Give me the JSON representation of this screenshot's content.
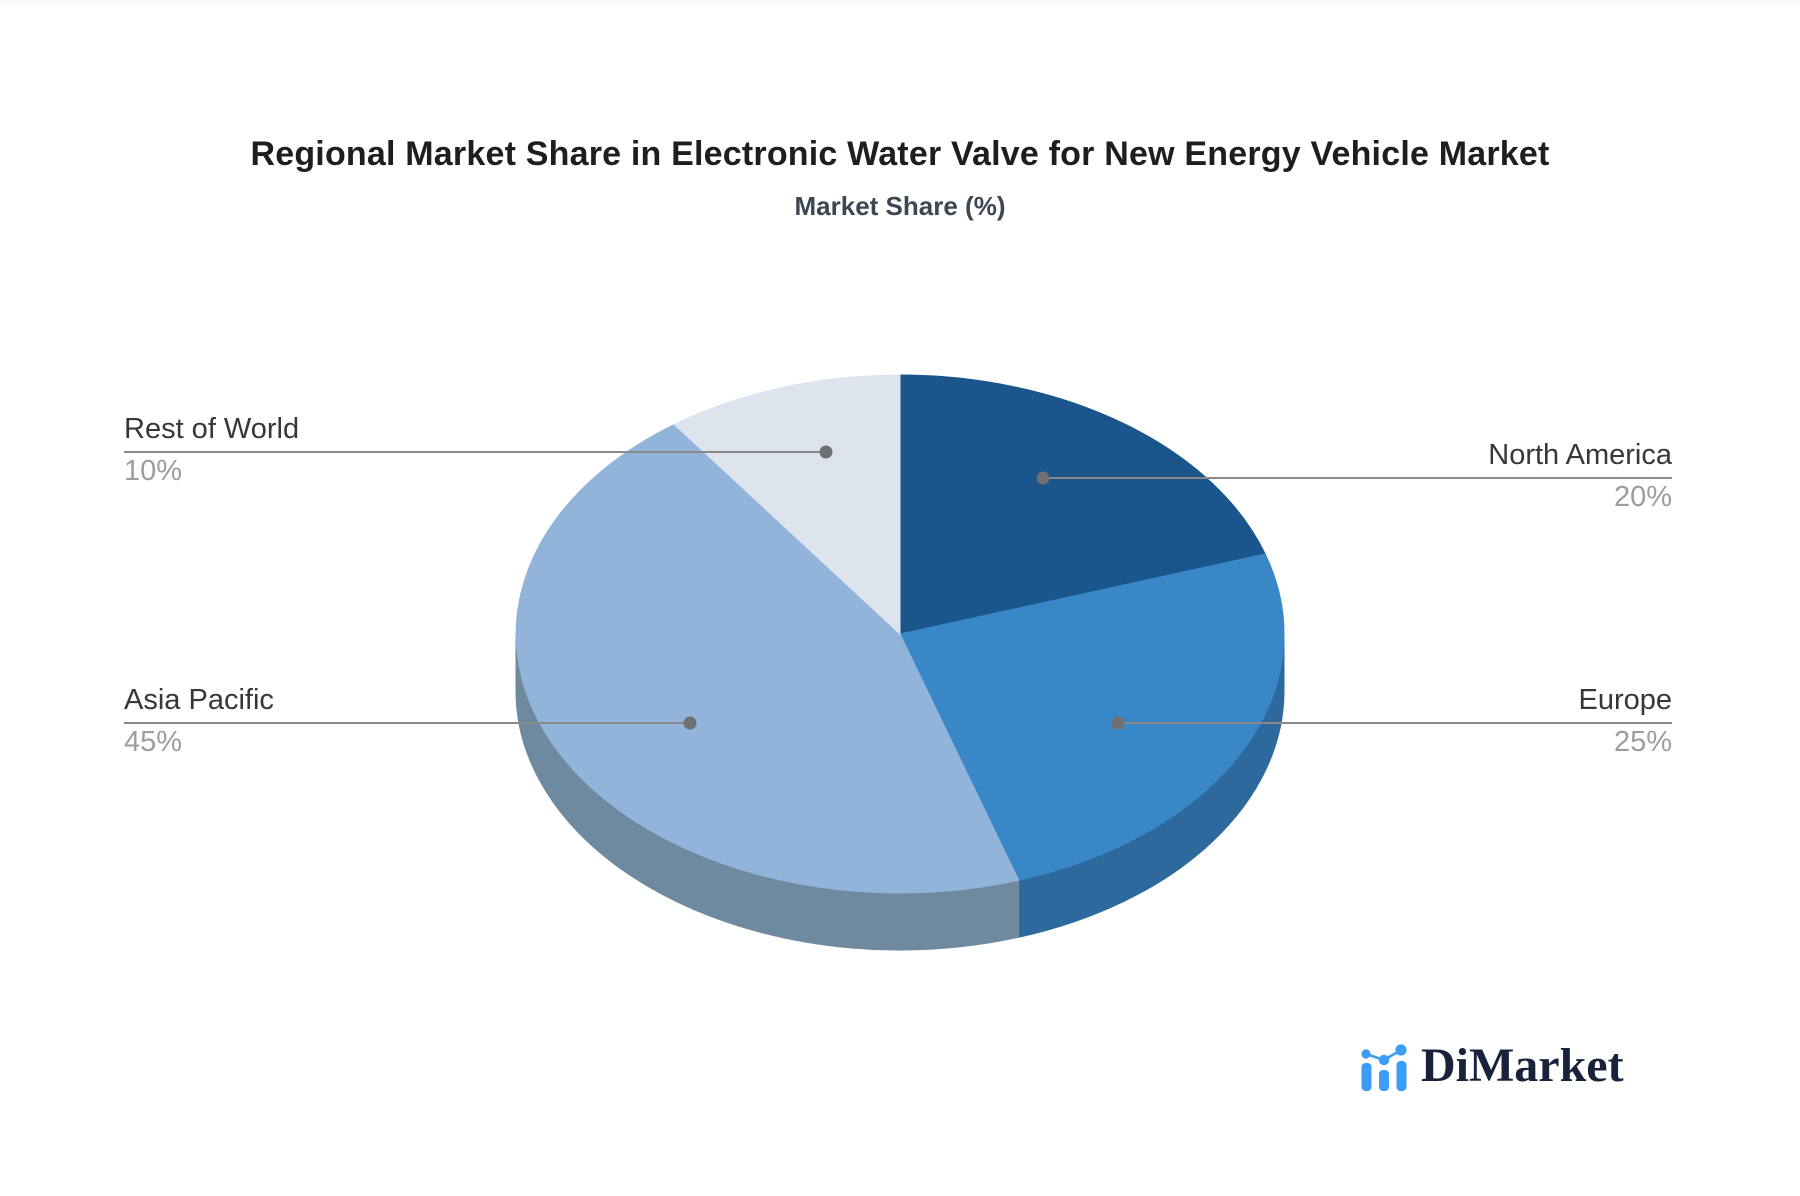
{
  "page": {
    "background": "#ffffff",
    "top_strip_color": "#f7f9fb"
  },
  "header": {
    "title": "Regional Market Share in Electronic Water Valve for New Energy Vehicle Market",
    "subtitle": "Market Share (%)"
  },
  "chart_data": {
    "type": "pie",
    "title": "Regional Market Share in Electronic Water Valve for New Energy Vehicle Market",
    "subtitle": "Market Share (%)",
    "unit": "%",
    "style": "3d-pie",
    "start_angle": "12-oclock",
    "direction": "clockwise",
    "categories": [
      "North America",
      "Europe",
      "Asia Pacific",
      "Rest of World"
    ],
    "values": [
      20,
      25,
      45,
      10
    ],
    "slices": [
      {
        "label": "North America",
        "value": 20,
        "display": "20%",
        "color": "#1a568c",
        "side_color": "#15466f"
      },
      {
        "label": "Europe",
        "value": 25,
        "display": "25%",
        "color": "#3a87c8",
        "side_color": "#2d699c"
      },
      {
        "label": "Asia Pacific",
        "value": 45,
        "display": "45%",
        "color": "#92b4da",
        "side_color": "#6f899f"
      },
      {
        "label": "Rest of World",
        "value": 10,
        "display": "10%",
        "color": "#dee4ee",
        "side_color": "#b2bcc9"
      }
    ],
    "label_name_color": "#373737",
    "label_value_color": "#9d9d9d",
    "connector_color": "#8a8a8a",
    "connector_dot_color": "#707070",
    "legend": "none"
  },
  "branding": {
    "logo_text": "DiMarket",
    "logo_text_color": "#18223b",
    "icon_name": "bar-line-chart-icon",
    "icon_color": "#3b9df5"
  }
}
